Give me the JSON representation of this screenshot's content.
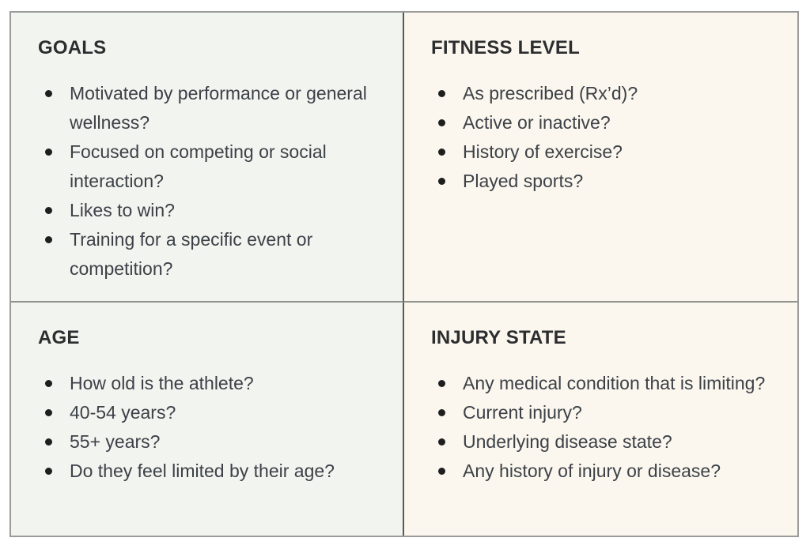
{
  "theme": {
    "outer-border": "#9b9b9b",
    "v-divider": "#5a5a5a",
    "h-divider": "#90938c",
    "left-bg": "#f2f4f0",
    "right-bg": "#fbf7ee",
    "title-color": "#2b2d2f",
    "body-color": "#3c4147",
    "bullet-color": "#1e1e1e"
  },
  "table": {
    "cells": [
      {
        "title": "GOALS",
        "items": [
          "Motivated by performance or general wellness?",
          "Focused on competing or social interaction?",
          "Likes to win?",
          "Training for a specific event or competition?"
        ]
      },
      {
        "title": "FITNESS LEVEL",
        "items": [
          "As prescribed (Rx’d)?",
          "Active or inactive?",
          "History of exercise?",
          "Played sports?"
        ]
      },
      {
        "title": "AGE",
        "items": [
          "How old is the athlete?",
          "40-54 years?",
          "55+ years?",
          "Do they feel limited by their age?"
        ]
      },
      {
        "title": "INJURY STATE",
        "items": [
          "Any medical condition that is limiting?",
          "Current injury?",
          "Underlying disease state?",
          "Any history of injury or disease?"
        ]
      }
    ]
  }
}
